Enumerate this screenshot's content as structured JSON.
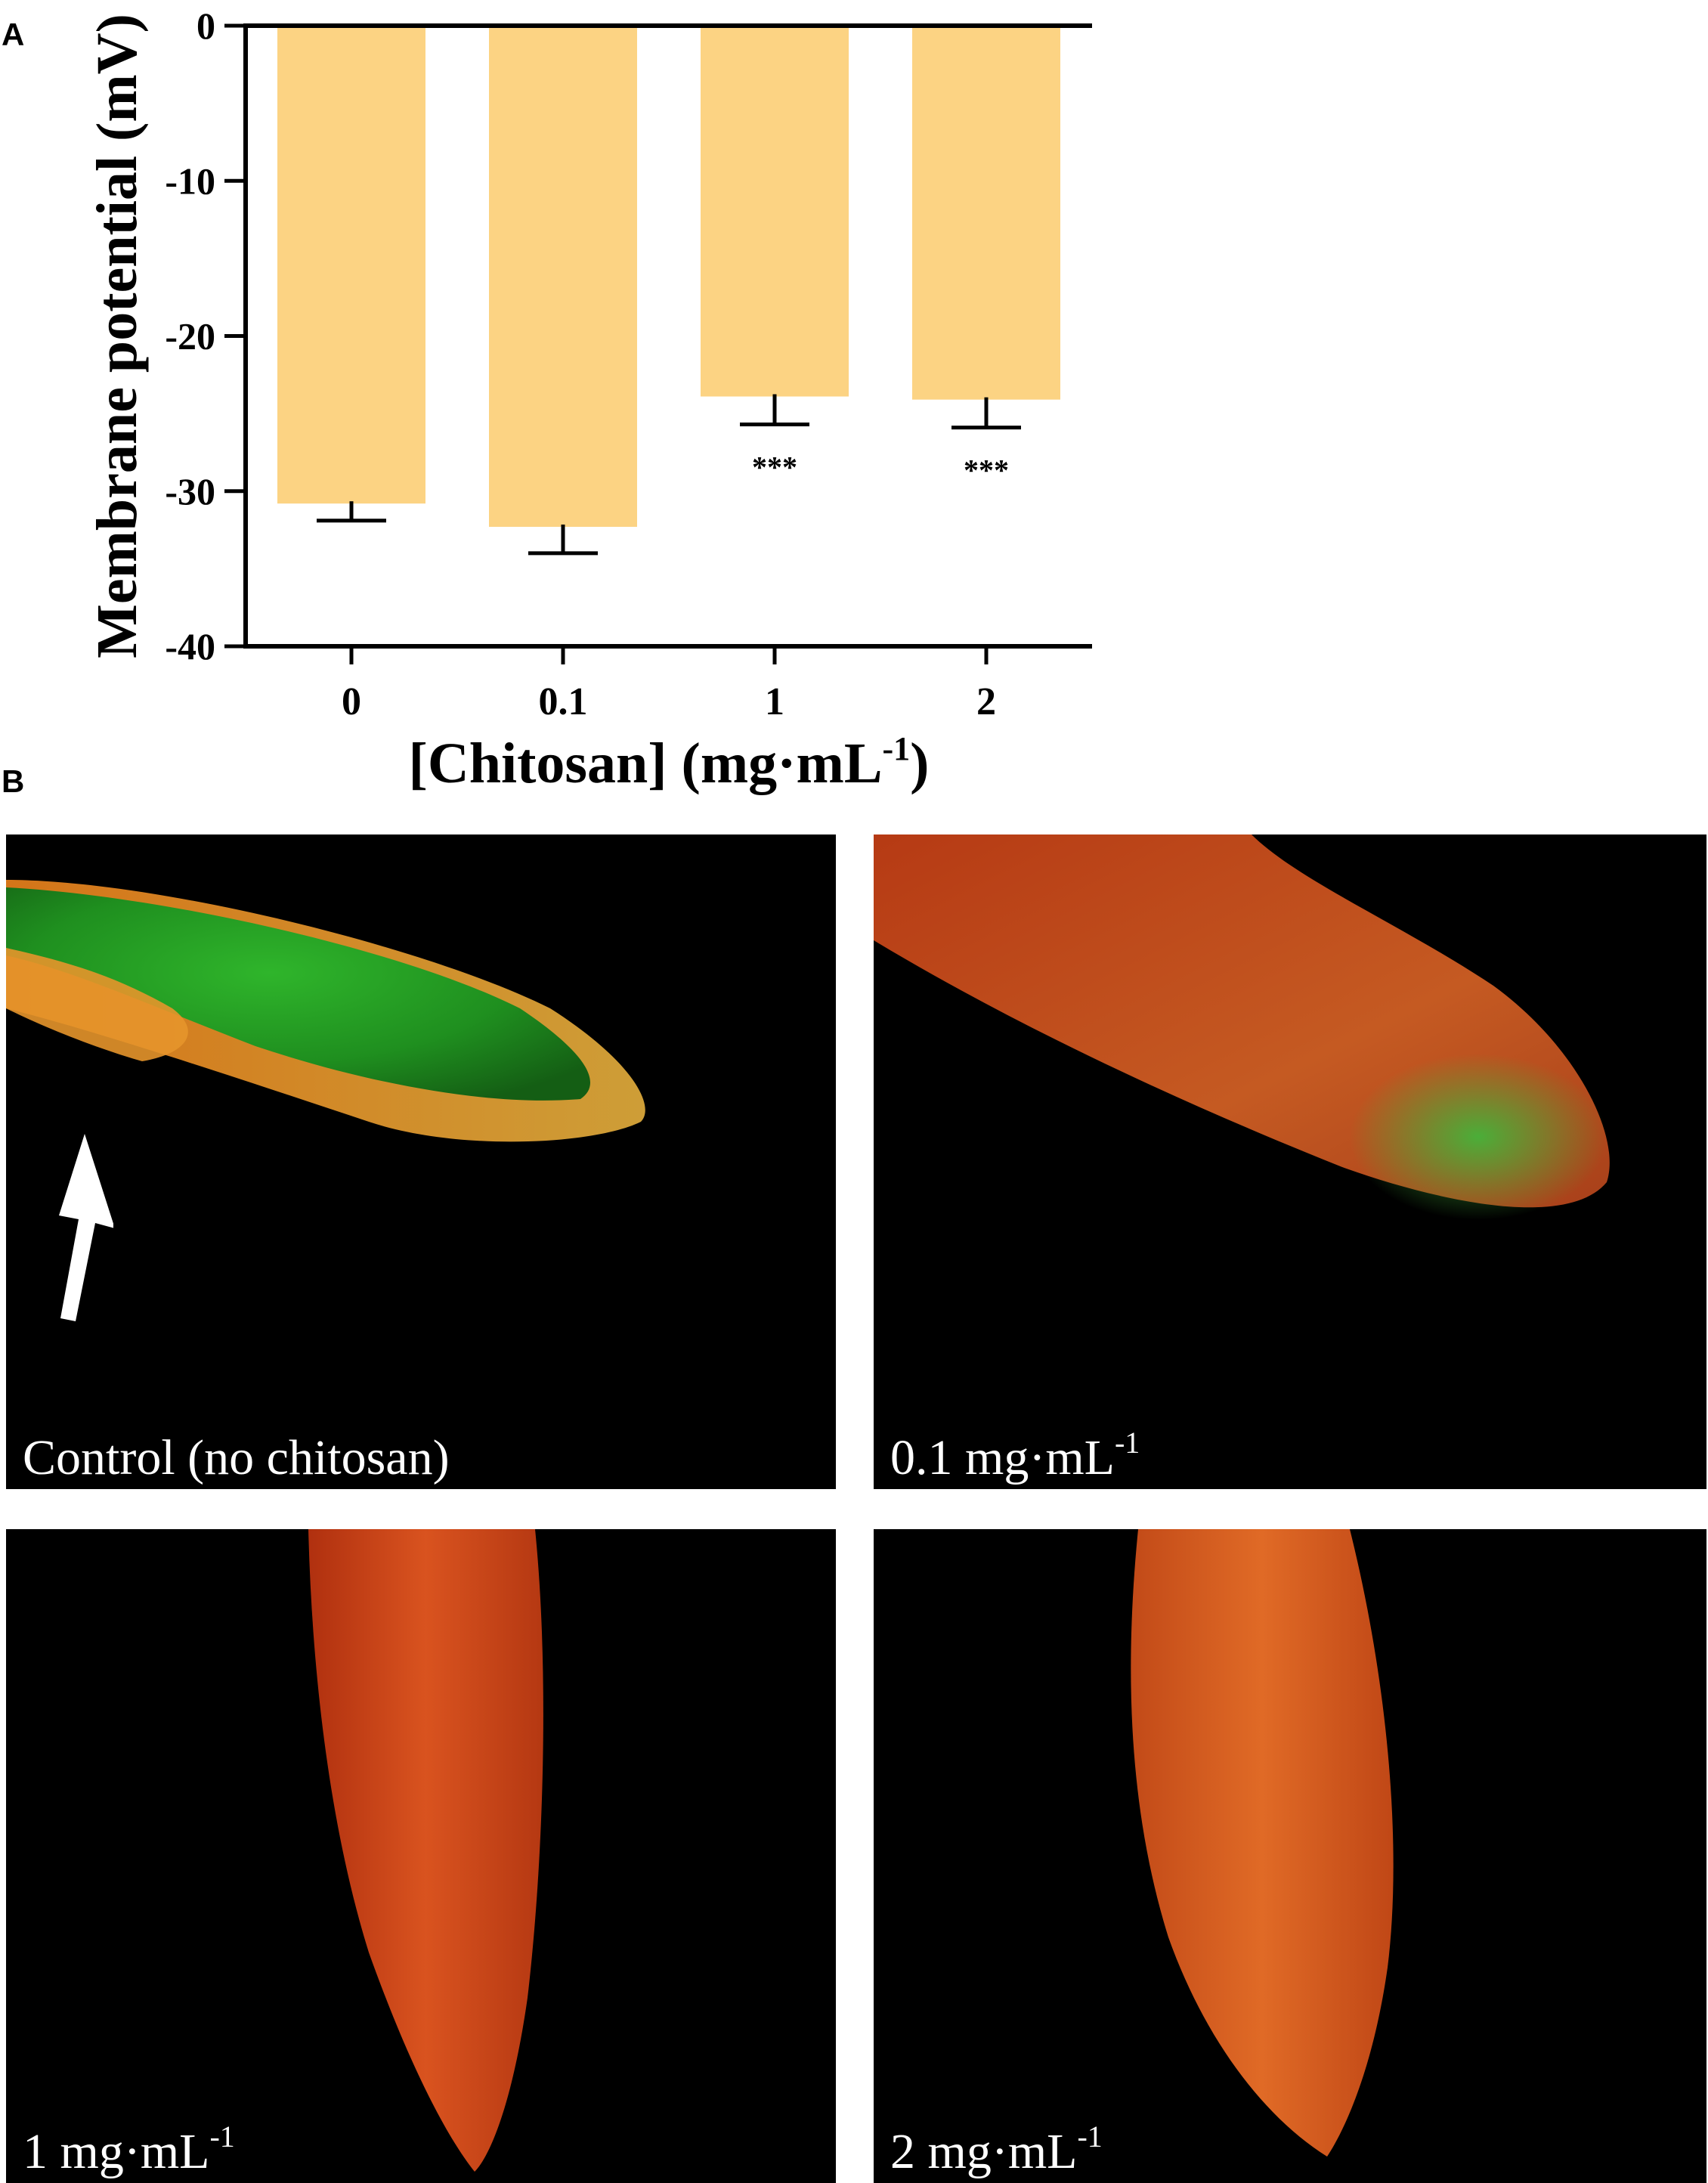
{
  "panel_a_letter": "A",
  "panel_b_letter": "B",
  "chart_data": {
    "type": "bar",
    "categories": [
      "0",
      "0.1",
      "1",
      "2"
    ],
    "values": [
      -30.8,
      -32.3,
      -23.9,
      -24.1
    ],
    "error": [
      1.1,
      1.7,
      1.8,
      1.8
    ],
    "significance": [
      "",
      "",
      "***",
      "***"
    ],
    "ylabel": "Membrane potential (mV)",
    "xlabel": "[Chitosan] (mg·mL",
    "xlabel_superscript": "-1",
    "xlabel_suffix": ")",
    "ylim": [
      -40,
      0
    ],
    "yticks": [
      0,
      -10,
      -20,
      -30,
      -40
    ],
    "bar_color": "#fcd383",
    "axis_color": "#000000"
  },
  "micrographs": [
    {
      "label": "Control (no chitosan)",
      "superscript": "",
      "fluorescence": "green-dominant with orange margin"
    },
    {
      "label": "0.1 mg·mL",
      "superscript": "-1",
      "fluorescence": "orange-red with green tip"
    },
    {
      "label": "1 mg·mL",
      "superscript": "-1",
      "fluorescence": "orange-red"
    },
    {
      "label": "2 mg·mL",
      "superscript": "-1",
      "fluorescence": "orange-red"
    }
  ]
}
